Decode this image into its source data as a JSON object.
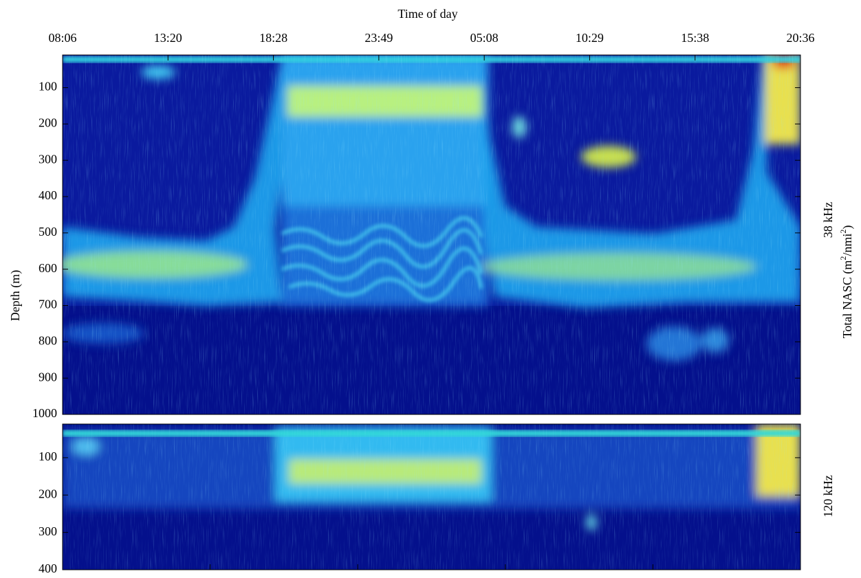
{
  "chart_data": [
    {
      "type": "heatmap",
      "xlabel": "Time of day",
      "x_tick_labels": [
        "08:06",
        "13:20",
        "18:28",
        "23:49",
        "05:08",
        "10:29",
        "15:38",
        "20:36"
      ],
      "ylabel": "Depth (m)",
      "panel_label": "38 kHz",
      "colorbar_label_parts": [
        "Total NASC (m",
        "2",
        "/nmi",
        "2",
        ")"
      ],
      "ylim": [
        10,
        1000
      ],
      "yticks": [
        100,
        200,
        300,
        400,
        500,
        600,
        700,
        800,
        900,
        1000
      ]
    },
    {
      "type": "heatmap",
      "panel_label": "120 kHz",
      "ylim": [
        10,
        400
      ],
      "yticks": [
        100,
        200,
        300,
        400
      ]
    }
  ]
}
